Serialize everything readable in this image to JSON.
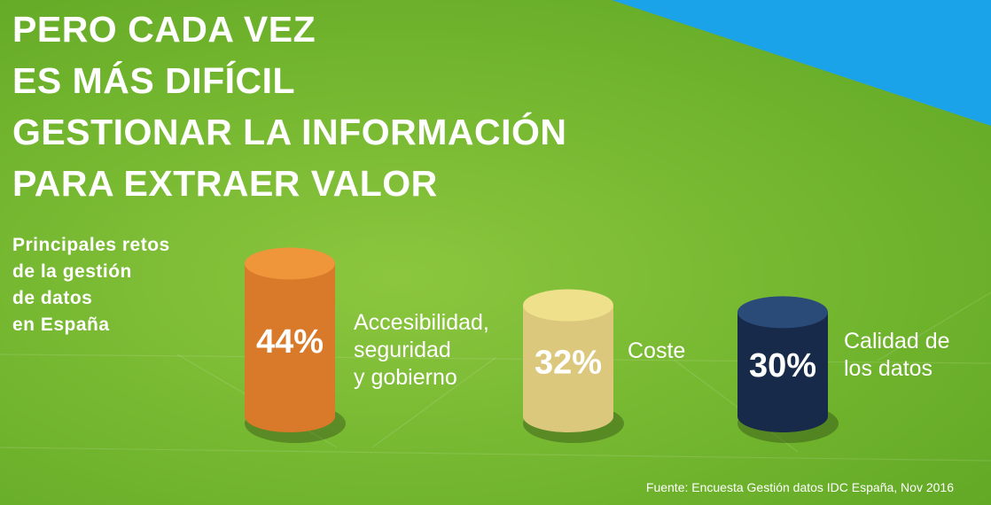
{
  "title": [
    "PERO CADA VEZ",
    "ES MÁS DIFÍCIL",
    "GESTIONAR LA INFORMACIÓN",
    "PARA EXTRAER VALOR"
  ],
  "subtitle": [
    "Principales retos",
    "de la gestión",
    "de datos",
    "en España"
  ],
  "source": "Fuente: Encuesta Gestión datos IDC España, Nov 2016",
  "colors": {
    "background": "#7dbd34",
    "corner": "#1aa3e8"
  },
  "chart_data": {
    "type": "bar",
    "categories": [
      "Accesibilidad, seguridad y gobierno",
      "Coste",
      "Calidad de los datos"
    ],
    "category_lines": [
      [
        "Accesibilidad,",
        "seguridad",
        "y gobierno"
      ],
      [
        "Coste"
      ],
      [
        "Calidad  de",
        "los datos"
      ]
    ],
    "values": [
      44,
      32,
      30
    ],
    "value_labels": [
      "44%",
      "32%",
      "30%"
    ],
    "unit": "%",
    "ylim": [
      0,
      50
    ],
    "colors": [
      {
        "body": "#d9792a",
        "top": "#f0963a"
      },
      {
        "body": "#dcc87c",
        "top": "#efe08c"
      },
      {
        "body": "#172a4a",
        "top": "#2a4a78"
      }
    ]
  }
}
